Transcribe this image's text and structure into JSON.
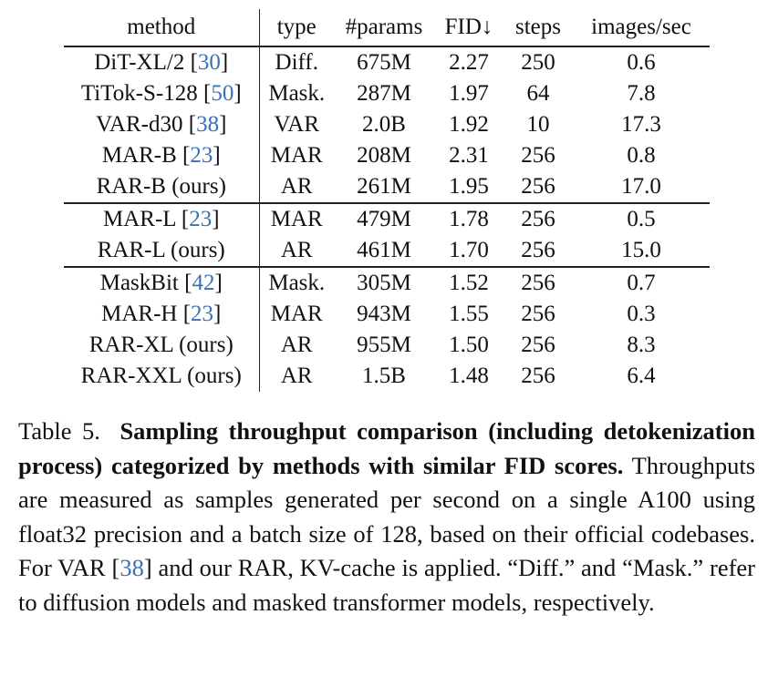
{
  "table": {
    "headers": [
      "method",
      "type",
      "#params",
      "FID↓",
      "steps",
      "images/sec"
    ],
    "rows": [
      {
        "method": "DiT-XL/2 [",
        "ref": "30",
        "close": "]",
        "type": "Diff.",
        "params": "675M",
        "fid": "2.27",
        "steps": "250",
        "ips": "0.6",
        "group_start": false
      },
      {
        "method": "TiTok-S-128 [",
        "ref": "50",
        "close": "]",
        "type": "Mask.",
        "params": "287M",
        "fid": "1.97",
        "steps": "64",
        "ips": "7.8",
        "group_start": false
      },
      {
        "method": "VAR-d30 [",
        "ref": "38",
        "close": "]",
        "type": "VAR",
        "params": "2.0B",
        "fid": "1.92",
        "steps": "10",
        "ips": "17.3",
        "group_start": false
      },
      {
        "method": "MAR-B [",
        "ref": "23",
        "close": "]",
        "type": "MAR",
        "params": "208M",
        "fid": "2.31",
        "steps": "256",
        "ips": "0.8",
        "group_start": false
      },
      {
        "method": "RAR-B (ours)",
        "ref": "",
        "close": "",
        "type": "AR",
        "params": "261M",
        "fid": "1.95",
        "steps": "256",
        "ips": "17.0",
        "group_start": false
      },
      {
        "method": "MAR-L [",
        "ref": "23",
        "close": "]",
        "type": "MAR",
        "params": "479M",
        "fid": "1.78",
        "steps": "256",
        "ips": "0.5",
        "group_start": true
      },
      {
        "method": "RAR-L (ours)",
        "ref": "",
        "close": "",
        "type": "AR",
        "params": "461M",
        "fid": "1.70",
        "steps": "256",
        "ips": "15.0",
        "group_start": false
      },
      {
        "method": "MaskBit [",
        "ref": "42",
        "close": "]",
        "type": "Mask.",
        "params": "305M",
        "fid": "1.52",
        "steps": "256",
        "ips": "0.7",
        "group_start": true
      },
      {
        "method": "MAR-H [",
        "ref": "23",
        "close": "]",
        "type": "MAR",
        "params": "943M",
        "fid": "1.55",
        "steps": "256",
        "ips": "0.3",
        "group_start": false
      },
      {
        "method": "RAR-XL (ours)",
        "ref": "",
        "close": "",
        "type": "AR",
        "params": "955M",
        "fid": "1.50",
        "steps": "256",
        "ips": "8.3",
        "group_start": false
      },
      {
        "method": "RAR-XXL (ours)",
        "ref": "",
        "close": "",
        "type": "AR",
        "params": "1.5B",
        "fid": "1.48",
        "steps": "256",
        "ips": "6.4",
        "group_start": false
      }
    ]
  },
  "caption": {
    "label": "Table 5.",
    "bold": "Sampling throughput comparison (including de­tokenization process) categorized by methods with similar FID scores.",
    "text_before_ref": " Throughputs are measured as samples generated per sec­ond on a single A100 using float32 precision and a batch size of 128, based on their official codebases. For VAR [",
    "ref": "38",
    "text_after_ref": "] and our RAR, KV-cache is applied. “Diff.” and “Mask.” refer to diffusion mod­els and masked transformer models, respectively."
  },
  "colors": {
    "text": "#111111",
    "ref": "#3b6fb6",
    "rule": "#222222"
  }
}
